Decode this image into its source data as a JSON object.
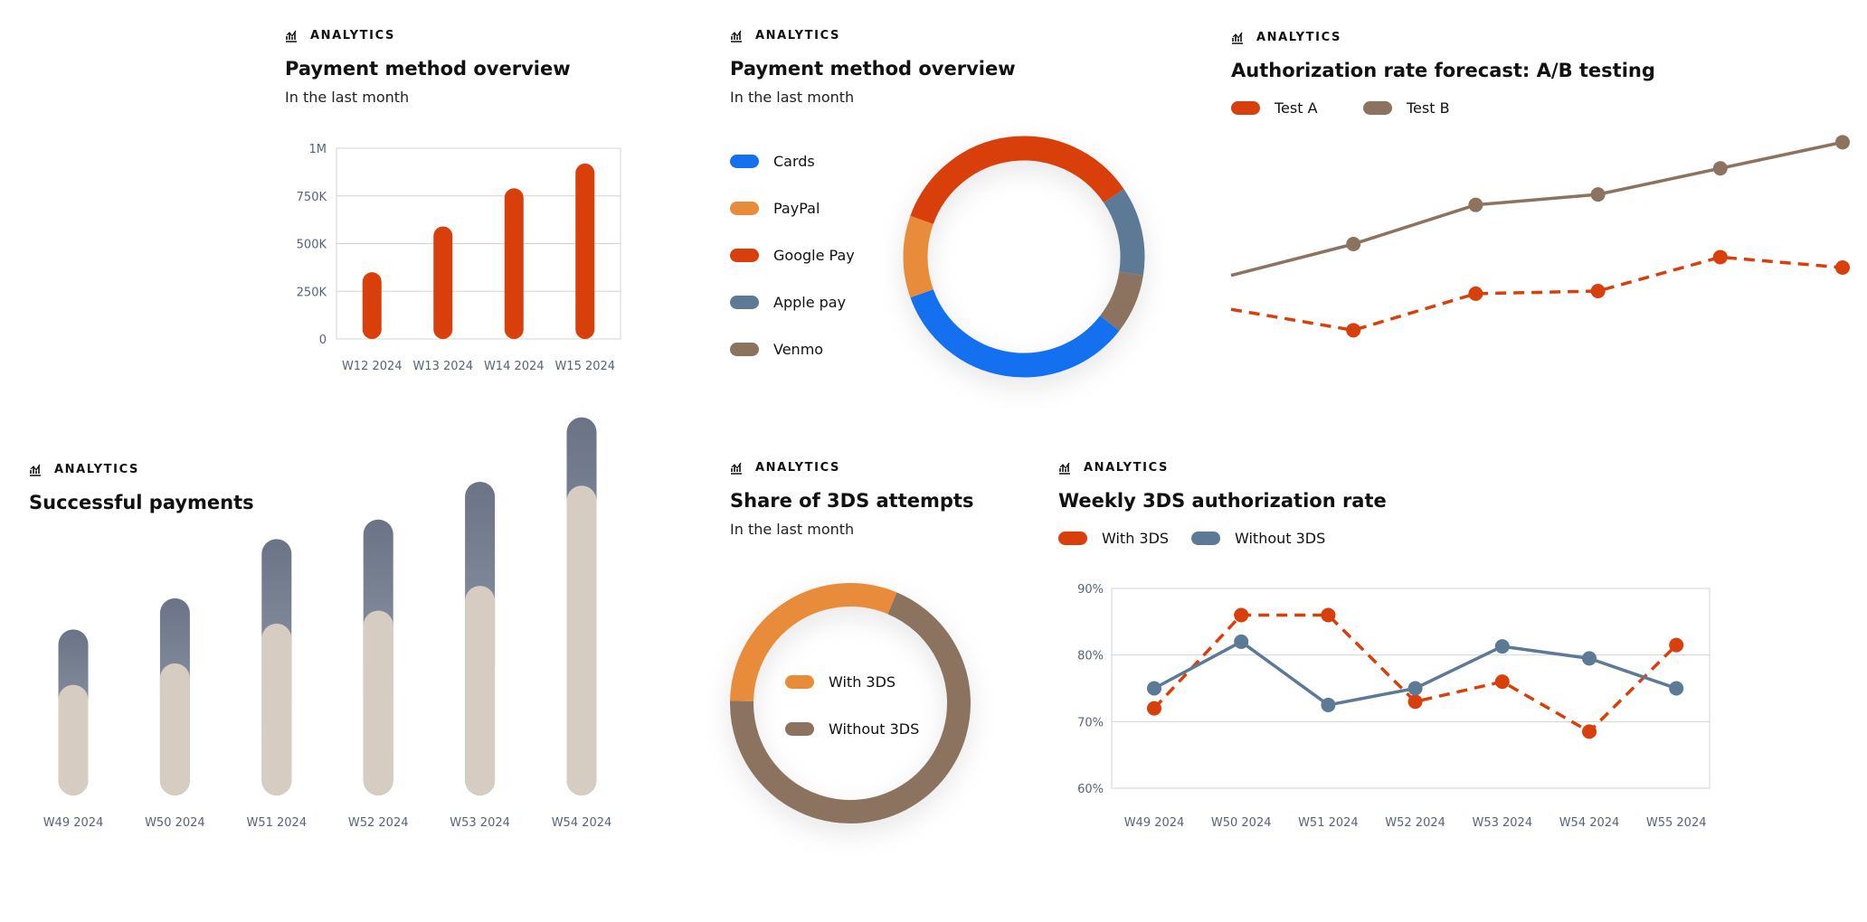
{
  "colors": {
    "orange_red": "#d93f0b",
    "cards_blue": "#1570ef",
    "paypal_orange": "#e88b3b",
    "steel_blue": "#5c7a95",
    "venmo_brown": "#8b7360",
    "slate_gradient_top": "#6a7486",
    "slate_gradient_bottom": "#a2aab6",
    "beige": "#d7ccc2"
  },
  "icons": {
    "eyebrow": "analytics-chart-icon"
  },
  "cards": [
    {
      "eyebrow": "ANALYTICS",
      "title": "Payment method overview",
      "subtitle": "In the last month"
    },
    {
      "eyebrow": "ANALYTICS",
      "title": "Payment method overview",
      "subtitle": "In the last month"
    },
    {
      "eyebrow": "ANALYTICS",
      "title": "Authorization rate forecast: A/B testing"
    },
    {
      "eyebrow": "ANALYTICS",
      "title": "Successful payments"
    },
    {
      "eyebrow": "ANALYTICS",
      "title": "Share of 3DS attempts",
      "subtitle": "In the last month"
    },
    {
      "eyebrow": "ANALYTICS",
      "title": "Weekly 3DS authorization rate"
    }
  ],
  "chart_data": [
    {
      "type": "bar",
      "categories": [
        "W12 2024",
        "W13 2024",
        "W14 2024",
        "W15 2024"
      ],
      "values": [
        350000,
        590000,
        790000,
        920000
      ],
      "yticks": [
        "0",
        "250K",
        "500K",
        "750K",
        "1M"
      ],
      "ylim": [
        0,
        1000000
      ],
      "grid": true,
      "color": "#d93f0b"
    },
    {
      "type": "pie",
      "donut": true,
      "labels": [
        "Cards",
        "PayPal",
        "Google Pay",
        "Apple pay",
        "Venmo"
      ],
      "values": [
        34,
        11,
        35,
        12,
        8
      ],
      "colors": [
        "#1570ef",
        "#e88b3b",
        "#d93f0b",
        "#5c7a95",
        "#8b7360"
      ],
      "legend": "left"
    },
    {
      "type": "line",
      "x_count": 6,
      "series": [
        {
          "name": "Test A",
          "values": [
            75,
            71,
            78,
            78.5,
            85,
            83
          ],
          "color": "#d93f0b",
          "dashed": true
        },
        {
          "name": "Test B",
          "values": [
            81.5,
            87.5,
            95,
            97,
            102,
            107
          ],
          "color": "#8b7360",
          "dashed": false
        }
      ],
      "legend": "top-left",
      "grid": false
    },
    {
      "type": "bar",
      "stacked": true,
      "categories": [
        "W49 2024",
        "W50 2024",
        "W51 2024",
        "W52 2024",
        "W53 2024",
        "W54 2024"
      ],
      "series": [
        {
          "values": [
            170,
            203,
            264,
            284,
            322,
            476
          ],
          "color": "#d7ccc2"
        },
        {
          "values": [
            85,
            100,
            130,
            140,
            160,
            105
          ],
          "color": "#6a7486"
        }
      ],
      "ylim": [
        0,
        600
      ],
      "grid": false
    },
    {
      "type": "pie",
      "donut": true,
      "labels": [
        "With 3DS",
        "Without 3DS"
      ],
      "values": [
        31,
        69
      ],
      "colors": [
        "#e88b3b",
        "#8b7360"
      ],
      "legend": "center"
    },
    {
      "type": "line",
      "categories": [
        "W49 2024",
        "W50 2024",
        "W51 2024",
        "W52 2024",
        "W53 2024",
        "W54 2024",
        "W55 2024"
      ],
      "series": [
        {
          "name": "With 3DS",
          "values": [
            72,
            86,
            86,
            73,
            76,
            68.5,
            81.5
          ],
          "color": "#d93f0b",
          "dashed": true
        },
        {
          "name": "Without 3DS",
          "values": [
            75,
            82,
            72.5,
            75,
            81.3,
            79.5,
            75
          ],
          "color": "#5c7a95",
          "dashed": false
        }
      ],
      "yticks": [
        "60%",
        "70%",
        "80%",
        "90%"
      ],
      "ylim": [
        60,
        90
      ],
      "grid": true,
      "legend": "top-left"
    }
  ]
}
